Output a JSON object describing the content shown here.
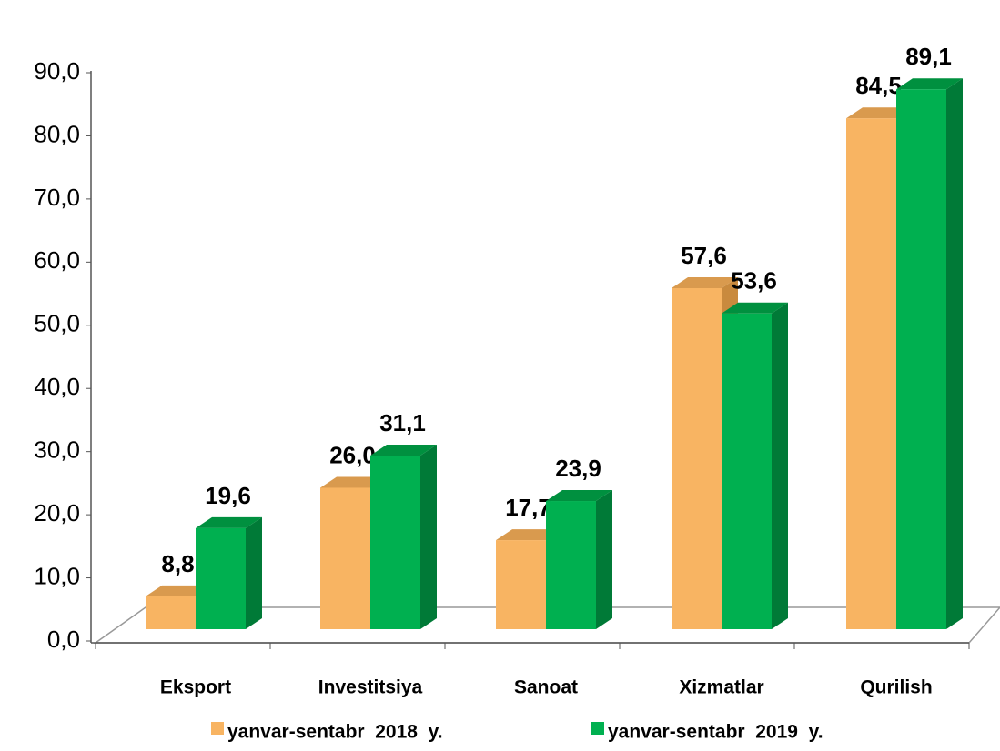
{
  "chart_data": {
    "type": "bar3d",
    "categories": [
      "Eksport",
      "Investitsiya",
      "Sanoat",
      "Xizmatlar",
      "Qurilish"
    ],
    "series": [
      {
        "name": "yanvar-sentabr  2018  y.",
        "color": "#f8b462",
        "values": [
          8.8,
          26.0,
          17.7,
          57.6,
          84.5
        ],
        "value_labels": [
          "8,8",
          "26,0",
          "17,7",
          "57,6",
          "84,5"
        ]
      },
      {
        "name": "yanvar-sentabr  2019  y.",
        "color": "#00b050",
        "values": [
          19.6,
          31.1,
          23.9,
          53.6,
          89.1
        ],
        "value_labels": [
          "19,6",
          "31,1",
          "23,9",
          "53,6",
          "89,1"
        ]
      }
    ],
    "ylim": [
      0,
      90
    ],
    "yticks": [
      {
        "value": 0,
        "label": "0,0"
      },
      {
        "value": 10,
        "label": "10,0"
      },
      {
        "value": 20,
        "label": "20,0"
      },
      {
        "value": 30,
        "label": "30,0"
      },
      {
        "value": 40,
        "label": "40,0"
      },
      {
        "value": 50,
        "label": "50,0"
      },
      {
        "value": 60,
        "label": "60,0"
      },
      {
        "value": 70,
        "label": "70,0"
      },
      {
        "value": 80,
        "label": "80,0"
      },
      {
        "value": 90,
        "label": "90,0"
      }
    ],
    "legend": "bottom"
  }
}
